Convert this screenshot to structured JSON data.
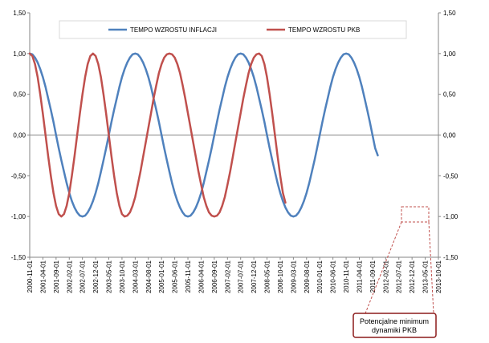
{
  "chart_data": {
    "type": "line",
    "title": "",
    "xlabel": "",
    "ylabel": "",
    "ylim": [
      -1.5,
      1.5
    ],
    "y_ticks": [
      "1,50",
      "1,00",
      "0,50",
      "0,00",
      "-0,50",
      "-1,00",
      "-1,50"
    ],
    "y_tick_values": [
      1.5,
      1.0,
      0.5,
      0.0,
      -0.5,
      -1.0,
      -1.5
    ],
    "secondary_axis_right": true,
    "grid": false,
    "legend_position": "top",
    "x_tick_labels": [
      "2000-11-01",
      "2001-04-01",
      "2001-09-01",
      "2002-02-01",
      "2002-07-01",
      "2002-12-01",
      "2003-05-01",
      "2003-10-01",
      "2004-03-01",
      "2004-08-01",
      "2005-01-01",
      "2005-06-01",
      "2005-11-01",
      "2006-04-01",
      "2006-09-01",
      "2007-02-01",
      "2007-07-01",
      "2007-12-01",
      "2008-05-01",
      "2008-10-01",
      "2009-03-01",
      "2009-08-01",
      "2010-01-01",
      "2010-06-01",
      "2010-11-01",
      "2011-04-01",
      "2011-09-01",
      "2012-02-01",
      "2012-07-01",
      "2012-12-01",
      "2013-05-01",
      "2013-10-01"
    ],
    "series": [
      {
        "name": "TEMPO WZROSTU  INFLACJI",
        "color": "#4f81bd",
        "x_step_months": 1,
        "values": [
          1.0,
          0.99,
          0.95,
          0.89,
          0.81,
          0.71,
          0.59,
          0.45,
          0.31,
          0.16,
          0.0,
          -0.16,
          -0.31,
          -0.45,
          -0.59,
          -0.71,
          -0.81,
          -0.89,
          -0.95,
          -0.99,
          -1.0,
          -0.99,
          -0.95,
          -0.89,
          -0.81,
          -0.71,
          -0.59,
          -0.45,
          -0.31,
          -0.16,
          0.0,
          0.16,
          0.31,
          0.45,
          0.59,
          0.71,
          0.81,
          0.89,
          0.95,
          0.99,
          1.0,
          0.99,
          0.95,
          0.89,
          0.81,
          0.71,
          0.59,
          0.45,
          0.31,
          0.16,
          0.0,
          -0.16,
          -0.31,
          -0.45,
          -0.59,
          -0.71,
          -0.81,
          -0.89,
          -0.95,
          -0.99,
          -1.0,
          -0.99,
          -0.95,
          -0.89,
          -0.81,
          -0.71,
          -0.59,
          -0.45,
          -0.31,
          -0.16,
          0.0,
          0.16,
          0.31,
          0.45,
          0.59,
          0.71,
          0.81,
          0.89,
          0.95,
          0.99,
          1.0,
          0.99,
          0.95,
          0.89,
          0.81,
          0.71,
          0.59,
          0.45,
          0.31,
          0.16,
          0.0,
          -0.16,
          -0.31,
          -0.45,
          -0.59,
          -0.71,
          -0.81,
          -0.89,
          -0.95,
          -0.99,
          -1.0,
          -0.99,
          -0.95,
          -0.89,
          -0.81,
          -0.71,
          -0.59,
          -0.45,
          -0.31,
          -0.16,
          0.0,
          0.16,
          0.31,
          0.45,
          0.59,
          0.71,
          0.81,
          0.89,
          0.95,
          0.99,
          1.0,
          0.99,
          0.95,
          0.89,
          0.81,
          0.71,
          0.59,
          0.45,
          0.31,
          0.16,
          0.0,
          -0.16,
          -0.25
        ]
      },
      {
        "name": "TEMPO WZROSTU  PKB",
        "color": "#c0504d",
        "x_step_months": 1,
        "values": [
          1.0,
          0.97,
          0.87,
          0.71,
          0.5,
          0.26,
          0.0,
          -0.26,
          -0.5,
          -0.71,
          -0.87,
          -0.97,
          -1.0,
          -0.97,
          -0.87,
          -0.71,
          -0.5,
          -0.26,
          0.0,
          0.26,
          0.5,
          0.71,
          0.87,
          0.97,
          1.0,
          0.97,
          0.87,
          0.71,
          0.5,
          0.26,
          0.0,
          -0.26,
          -0.5,
          -0.71,
          -0.87,
          -0.97,
          -1.0,
          -0.99,
          -0.95,
          -0.87,
          -0.76,
          -0.61,
          -0.45,
          -0.27,
          -0.09,
          0.09,
          0.27,
          0.45,
          0.61,
          0.76,
          0.87,
          0.95,
          0.99,
          1.0,
          0.99,
          0.95,
          0.87,
          0.76,
          0.61,
          0.45,
          0.27,
          0.09,
          -0.09,
          -0.27,
          -0.45,
          -0.61,
          -0.76,
          -0.87,
          -0.95,
          -0.99,
          -1.0,
          -0.99,
          -0.95,
          -0.87,
          -0.76,
          -0.61,
          -0.45,
          -0.27,
          -0.09,
          0.09,
          0.27,
          0.45,
          0.61,
          0.76,
          0.87,
          0.95,
          0.99,
          1.0,
          0.97,
          0.87,
          0.71,
          0.5,
          0.26,
          0.0,
          -0.26,
          -0.5,
          -0.71,
          -0.83
        ]
      }
    ],
    "annotation": {
      "text_line1": "Potencjalne minimum",
      "text_line2": "dynamiki PKB",
      "x_range": [
        "2012-12-01",
        "2013-05-01"
      ],
      "y_value": -1.0
    }
  }
}
